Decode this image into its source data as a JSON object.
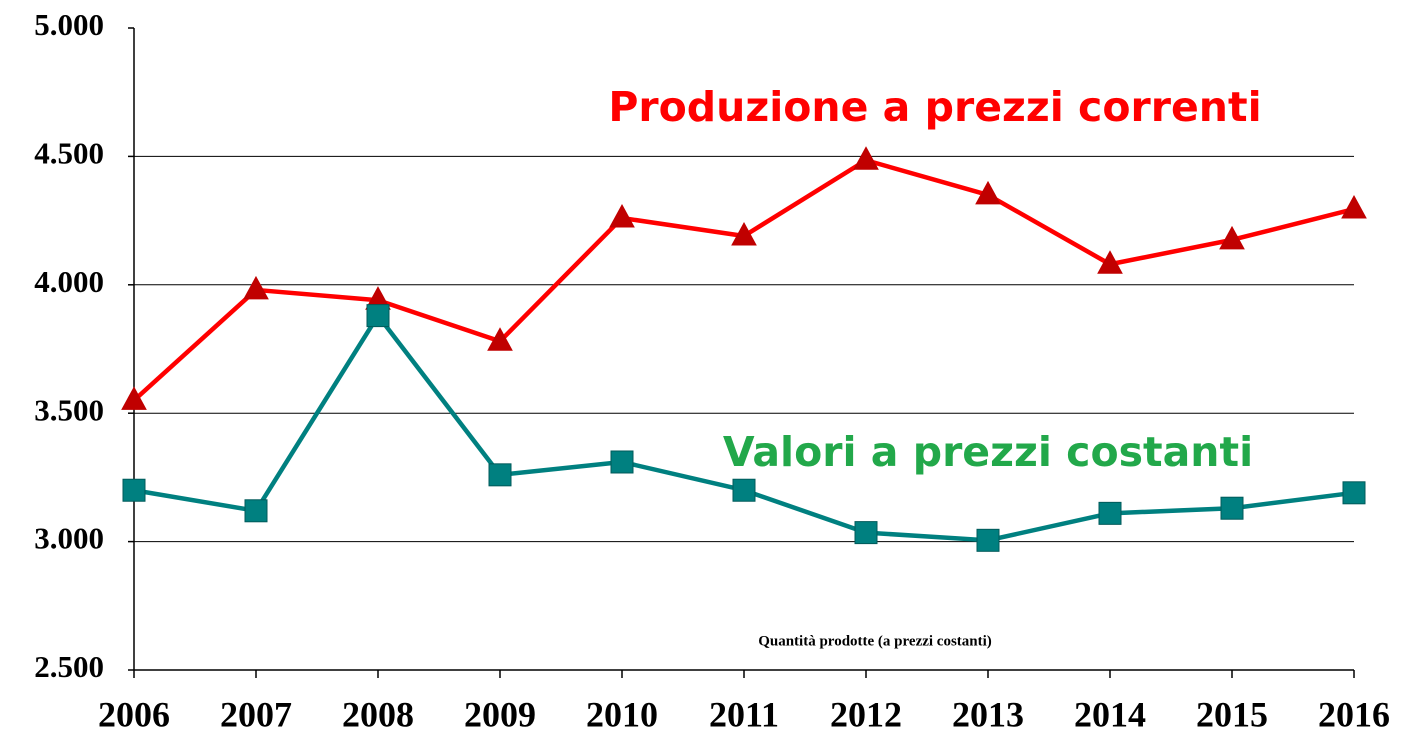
{
  "chart_data": {
    "type": "line",
    "categories": [
      "2006",
      "2007",
      "2008",
      "2009",
      "2010",
      "2011",
      "2012",
      "2013",
      "2014",
      "2015",
      "2016"
    ],
    "series": [
      {
        "name": "Produzione a prezzi correnti",
        "color": "#ff0000",
        "marker": "triangle",
        "marker_color": "#c00000",
        "label_color": "#ff0000",
        "values": [
          3550,
          3980,
          3940,
          3780,
          4260,
          4190,
          4485,
          4350,
          4080,
          4175,
          4295
        ]
      },
      {
        "name": "Valori a prezzi costanti",
        "color": "#008080",
        "marker": "square",
        "marker_color": "#008080",
        "label_color": "#22a84a",
        "values": [
          3200,
          3120,
          3880,
          3260,
          3310,
          3200,
          3035,
          3005,
          3110,
          3130,
          3190
        ]
      }
    ],
    "annotation": "Quantità prodotte (a prezzi costanti)",
    "ylim": [
      2500,
      5000
    ],
    "yticks": [
      {
        "value": 2500,
        "label": "2.500"
      },
      {
        "value": 3000,
        "label": "3.000"
      },
      {
        "value": 3500,
        "label": "3.500"
      },
      {
        "value": 4000,
        "label": "4.000"
      },
      {
        "value": 4500,
        "label": "4.500"
      },
      {
        "value": 5000,
        "label": "5.000"
      }
    ],
    "grid": true
  }
}
